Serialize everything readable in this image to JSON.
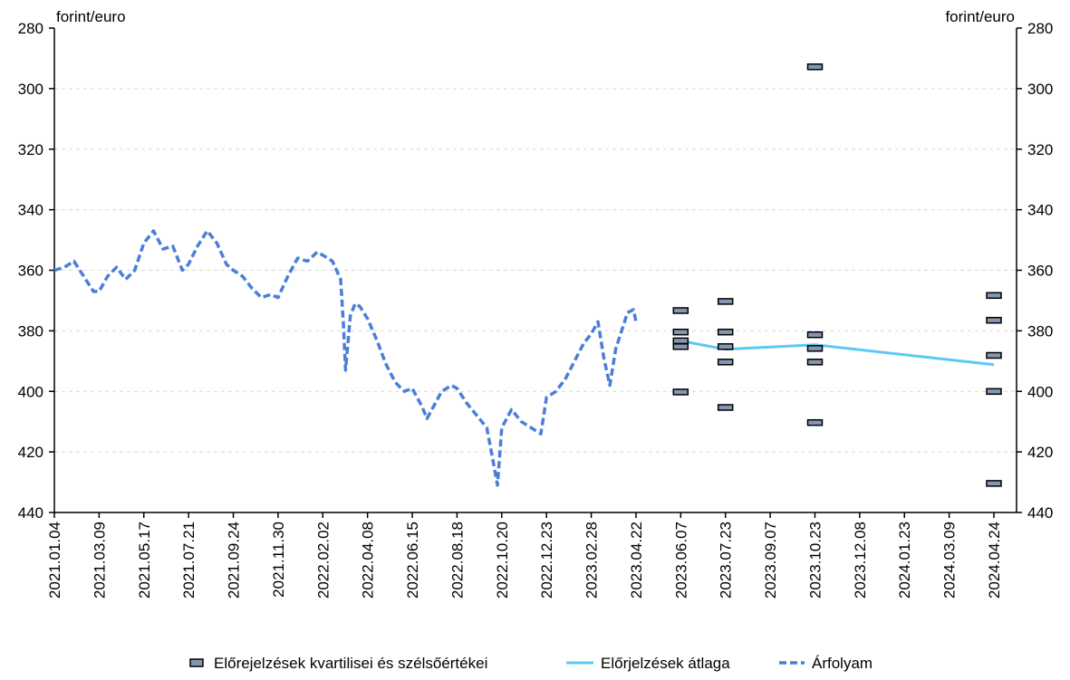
{
  "chart_data": {
    "type": "line",
    "left_unit": "forint/euro",
    "right_unit": "forint/euro",
    "y_axis_inverted": true,
    "ylim": [
      280,
      440
    ],
    "y_ticks": [
      280,
      300,
      320,
      340,
      360,
      380,
      400,
      420,
      440
    ],
    "x_tick_labels": [
      "2021.01.04",
      "2021.03.09",
      "2021.05.17",
      "2021.07.21",
      "2021.09.24",
      "2021.11.30",
      "2022.02.02",
      "2022.04.08",
      "2022.06.15",
      "2022.08.18",
      "2022.10.20",
      "2022.12.23",
      "2023.02.28",
      "2023.04.22",
      "2023.06.07",
      "2023.07.23",
      "2023.09.07",
      "2023.10.23",
      "2023.12.08",
      "2024.01.23",
      "2024.03.09",
      "2024.04.24"
    ],
    "grid": true,
    "legend_position": "bottom",
    "legend": {
      "quartiles": "Előrejelzések kvartilisei és szélsőértékei",
      "mean": "Előrjelzések átlaga",
      "rate": "Árfolyam"
    },
    "colors": {
      "quartiles_fill": "#8496b0",
      "mean": "#5bc8f5",
      "rate": "#4a7fd9",
      "grid": "#d9d9d9"
    },
    "series": [
      {
        "type": "line-dashed",
        "x": [
          "2021.01.04",
          "2021.01.18",
          "2021.02.01",
          "2021.02.15",
          "2021.03.01",
          "2021.03.09",
          "2021.03.22",
          "2021.04.05",
          "2021.04.19",
          "2021.05.03",
          "2021.05.17",
          "2021.05.31",
          "2021.06.14",
          "2021.06.28",
          "2021.07.12",
          "2021.07.21",
          "2021.08.03",
          "2021.08.17",
          "2021.08.31",
          "2021.09.14",
          "2021.09.24",
          "2021.10.08",
          "2021.10.22",
          "2021.11.05",
          "2021.11.19",
          "2021.11.30",
          "2021.12.14",
          "2021.12.28",
          "2022.01.11",
          "2022.01.25",
          "2022.02.02",
          "2022.02.16",
          "2022.02.28",
          "2022.03.04",
          "2022.03.07",
          "2022.03.14",
          "2022.03.21",
          "2022.03.28",
          "2022.04.08",
          "2022.04.22",
          "2022.05.06",
          "2022.05.20",
          "2022.06.03",
          "2022.06.15",
          "2022.06.29",
          "2022.07.06",
          "2022.07.13",
          "2022.07.27",
          "2022.08.10",
          "2022.08.18",
          "2022.09.01",
          "2022.09.15",
          "2022.09.29",
          "2022.10.07",
          "2022.10.14",
          "2022.10.20",
          "2022.11.03",
          "2022.11.17",
          "2022.12.01",
          "2022.12.15",
          "2022.12.23",
          "2023.01.06",
          "2023.01.20",
          "2023.02.03",
          "2023.02.17",
          "2023.02.28",
          "2023.03.08",
          "2023.03.15",
          "2023.03.22",
          "2023.03.29",
          "2023.04.05",
          "2023.04.12",
          "2023.04.19",
          "2023.04.22"
        ],
        "values": [
          360,
          359,
          357,
          362,
          367,
          367,
          362,
          359,
          363,
          360,
          351,
          347,
          353,
          352,
          360,
          358,
          352,
          347,
          351,
          358,
          360,
          362,
          366,
          369,
          368,
          369,
          362,
          356,
          357,
          354,
          355,
          357,
          363,
          378,
          393,
          375,
          371,
          372,
          376,
          383,
          391,
          397,
          400,
          399,
          405,
          409,
          406,
          400,
          398,
          399,
          404,
          408,
          412,
          422,
          431,
          412,
          406,
          410,
          412,
          414,
          402,
          400,
          396,
          390,
          384,
          381,
          377,
          389,
          398,
          386,
          380,
          374,
          373,
          377
        ]
      },
      {
        "type": "line",
        "x": [
          "2023.06.07",
          "2023.07.23",
          "2023.10.23",
          "2024.04.24"
        ],
        "values": [
          383.3,
          386.1,
          384.6,
          391.2
        ]
      },
      {
        "type": "markers",
        "x": [
          "2023.06.07",
          "2023.06.07",
          "2023.06.07",
          "2023.06.07",
          "2023.06.07",
          "2023.07.23",
          "2023.07.23",
          "2023.07.23",
          "2023.07.23",
          "2023.07.23",
          "2023.10.23",
          "2023.10.23",
          "2023.10.23",
          "2023.10.23",
          "2023.10.23",
          "2024.04.24",
          "2024.04.24",
          "2024.04.24",
          "2024.04.24",
          "2024.04.24"
        ],
        "values": [
          373.3,
          380.4,
          383.3,
          385.2,
          400.2,
          370.3,
          380.4,
          385.2,
          390.3,
          405.3,
          292.8,
          381.3,
          385.8,
          390.3,
          410.3,
          368.3,
          376.5,
          388.1,
          400.0,
          430.4
        ]
      }
    ]
  }
}
